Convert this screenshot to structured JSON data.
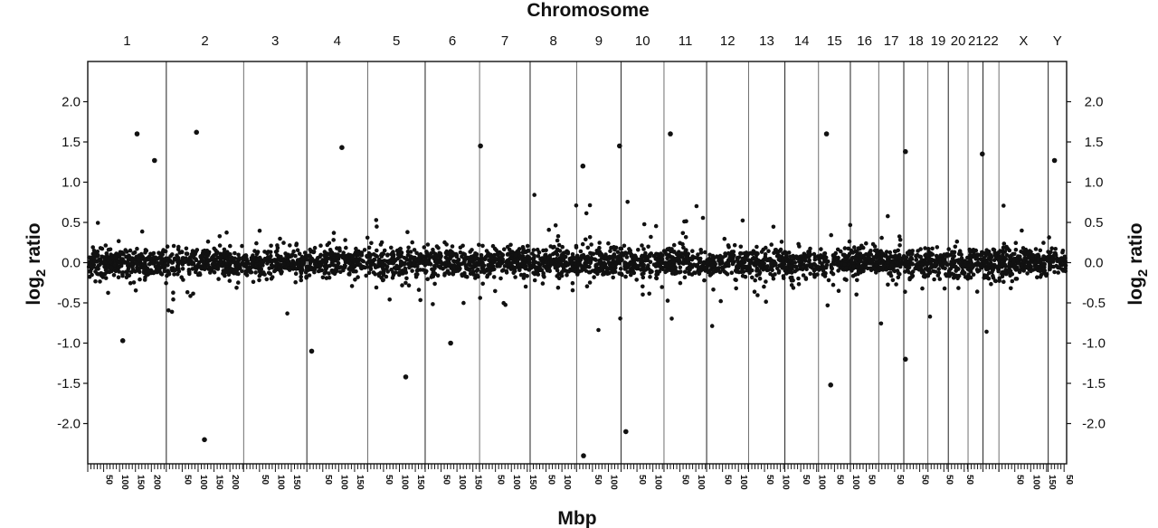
{
  "chart_data": {
    "type": "scatter",
    "title": "Chromosome",
    "xlabel": "Mbp",
    "ylabel": "log2 ratio",
    "ylabel_main": "log",
    "ylabel_sub": "2",
    "ylabel_tail": " ratio",
    "ylim": [
      -2.5,
      2.5
    ],
    "yticks": [
      "2.0",
      "1.5",
      "1.0",
      "0.5",
      "0.0",
      "-0.5",
      "-1.0",
      "-1.5",
      "-2.0"
    ],
    "ytick_values": [
      2.0,
      1.5,
      1.0,
      0.5,
      0.0,
      -0.5,
      -1.0,
      -1.5,
      -2.0
    ],
    "chromosomes": [
      {
        "name": "1",
        "length": 247,
        "mbp_ticks": [
          "50",
          "100",
          "150",
          "200"
        ]
      },
      {
        "name": "2",
        "length": 243,
        "mbp_ticks": [
          "50",
          "100",
          "150",
          "200"
        ]
      },
      {
        "name": "3",
        "length": 199,
        "mbp_ticks": [
          "50",
          "100",
          "150"
        ]
      },
      {
        "name": "4",
        "length": 191,
        "mbp_ticks": [
          "50",
          "100",
          "150"
        ]
      },
      {
        "name": "5",
        "length": 181,
        "mbp_ticks": [
          "50",
          "100",
          "150"
        ]
      },
      {
        "name": "6",
        "length": 171,
        "mbp_ticks": [
          "50",
          "100",
          "150"
        ]
      },
      {
        "name": "7",
        "length": 159,
        "mbp_ticks": [
          "50",
          "100",
          "150"
        ]
      },
      {
        "name": "8",
        "length": 146,
        "mbp_ticks": [
          "50",
          "100"
        ]
      },
      {
        "name": "9",
        "length": 140,
        "mbp_ticks": [
          "50",
          "100"
        ]
      },
      {
        "name": "10",
        "length": 135,
        "mbp_ticks": [
          "50",
          "100"
        ]
      },
      {
        "name": "11",
        "length": 134,
        "mbp_ticks": [
          "50",
          "100"
        ]
      },
      {
        "name": "12",
        "length": 132,
        "mbp_ticks": [
          "50",
          "100"
        ]
      },
      {
        "name": "13",
        "length": 114,
        "mbp_ticks": [
          "50",
          "100"
        ]
      },
      {
        "name": "14",
        "length": 106,
        "mbp_ticks": [
          "50",
          "100"
        ]
      },
      {
        "name": "15",
        "length": 100,
        "mbp_ticks": [
          "50",
          "100"
        ]
      },
      {
        "name": "16",
        "length": 89,
        "mbp_ticks": [
          "50"
        ]
      },
      {
        "name": "17",
        "length": 79,
        "mbp_ticks": [
          "50"
        ]
      },
      {
        "name": "18",
        "length": 76,
        "mbp_ticks": [
          "50"
        ]
      },
      {
        "name": "19",
        "length": 64,
        "mbp_ticks": [
          "50"
        ]
      },
      {
        "name": "20",
        "length": 62,
        "mbp_ticks": [
          "50"
        ]
      },
      {
        "name": "21",
        "length": 47,
        "mbp_ticks": []
      },
      {
        "name": "22",
        "length": 50,
        "mbp_ticks": []
      },
      {
        "name": "X",
        "length": 155,
        "mbp_ticks": [
          "50",
          "100",
          "150"
        ]
      },
      {
        "name": "Y",
        "length": 58,
        "mbp_ticks": [
          "50"
        ]
      }
    ],
    "notable_points": [
      {
        "chrom": "1",
        "pos": 155,
        "log2_ratio": 1.6
      },
      {
        "chrom": "1",
        "pos": 210,
        "log2_ratio": 1.27
      },
      {
        "chrom": "1",
        "pos": 110,
        "log2_ratio": -0.97
      },
      {
        "chrom": "2",
        "pos": 95,
        "log2_ratio": 1.62
      },
      {
        "chrom": "2",
        "pos": 120,
        "log2_ratio": -2.2
      },
      {
        "chrom": "4",
        "pos": 110,
        "log2_ratio": 1.43
      },
      {
        "chrom": "4",
        "pos": 15,
        "log2_ratio": -1.1
      },
      {
        "chrom": "5",
        "pos": 120,
        "log2_ratio": -1.42
      },
      {
        "chrom": "6",
        "pos": 80,
        "log2_ratio": -1.0
      },
      {
        "chrom": "7",
        "pos": 3,
        "log2_ratio": 1.45
      },
      {
        "chrom": "9",
        "pos": 135,
        "log2_ratio": 1.45
      },
      {
        "chrom": "9",
        "pos": 20,
        "log2_ratio": 1.2
      },
      {
        "chrom": "9",
        "pos": 22,
        "log2_ratio": -2.4
      },
      {
        "chrom": "10",
        "pos": 15,
        "log2_ratio": -2.1
      },
      {
        "chrom": "11",
        "pos": 20,
        "log2_ratio": 1.6
      },
      {
        "chrom": "15",
        "pos": 25,
        "log2_ratio": 1.6
      },
      {
        "chrom": "15",
        "pos": 38,
        "log2_ratio": -1.52
      },
      {
        "chrom": "18",
        "pos": 5,
        "log2_ratio": 1.38
      },
      {
        "chrom": "18",
        "pos": 5,
        "log2_ratio": -1.2
      },
      {
        "chrom": "21",
        "pos": 45,
        "log2_ratio": 1.35
      },
      {
        "chrom": "Y",
        "pos": 20,
        "log2_ratio": 1.27
      }
    ],
    "point_color": "#111111",
    "grid": false,
    "chromosome_separators": true
  }
}
